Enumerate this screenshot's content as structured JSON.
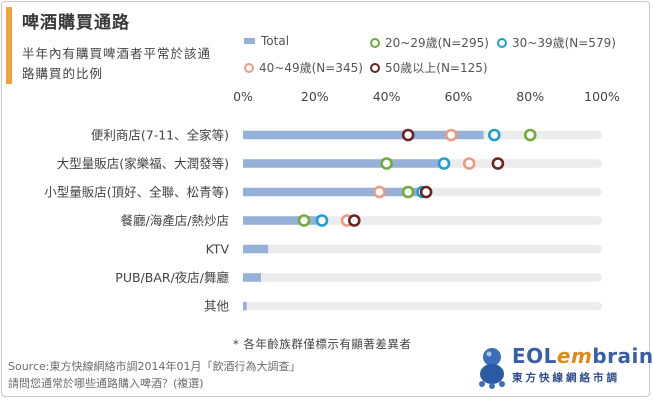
{
  "title": "啤酒購買通路",
  "subtitle": "半年內有購買啤酒者平常於該通路購買的比例",
  "note": "* 各年齡族群僅標示有顯著差異者",
  "source_line1": "Source:東方快線網絡市調2014年01月「飲酒行為大調查」",
  "source_line2": "請問您通常於哪些通路購入啤酒？(複選)",
  "logo": {
    "brand_a": "EOL",
    "brand_b": "em",
    "brand_c": "brain",
    "sub": "東方快線網絡市調"
  },
  "colors": {
    "total": "#95b0d9",
    "age20": "#72ab3a",
    "age30": "#1f9fd0",
    "age40": "#ef9a80",
    "age50": "#6b2420",
    "track": "#ececec"
  },
  "chart_data": {
    "type": "bar",
    "orientation": "horizontal",
    "xlim": [
      0,
      100
    ],
    "x_ticks": [
      "0%",
      "20%",
      "40%",
      "60%",
      "80%",
      "100%"
    ],
    "categories": [
      "便利商店(7-11、全家等)",
      "大型量販店(家樂福、大潤發等)",
      "小型量販店(頂好、全聯、松青等)",
      "餐廳/海產店/熱炒店",
      "KTV",
      "PUB/BAR/夜店/舞廳",
      "其他"
    ],
    "legend": [
      {
        "key": "total",
        "label": "Total",
        "kind": "bar"
      },
      {
        "key": "age20",
        "label": "20~29歲(N=295)",
        "kind": "marker"
      },
      {
        "key": "age30",
        "label": "30~39歲(N=579)",
        "kind": "marker"
      },
      {
        "key": "age40",
        "label": "40~49歲(N=345)",
        "kind": "marker"
      },
      {
        "key": "age50",
        "label": "50歲以上(N=125)",
        "kind": "marker"
      }
    ],
    "series": [
      {
        "name": "Total",
        "key": "total",
        "values": [
          67,
          56,
          50,
          21,
          7,
          5,
          1
        ]
      },
      {
        "name": "20~29歲(N=295)",
        "key": "age20",
        "values": [
          80,
          40,
          46,
          17,
          null,
          null,
          null
        ]
      },
      {
        "name": "30~39歲(N=579)",
        "key": "age30",
        "values": [
          70,
          56,
          50,
          22,
          null,
          null,
          null
        ]
      },
      {
        "name": "40~49歲(N=345)",
        "key": "age40",
        "values": [
          58,
          63,
          38,
          29,
          null,
          null,
          null
        ]
      },
      {
        "name": "50歲以上(N=125)",
        "key": "age50",
        "values": [
          46,
          71,
          51,
          31,
          null,
          null,
          null
        ]
      }
    ]
  }
}
